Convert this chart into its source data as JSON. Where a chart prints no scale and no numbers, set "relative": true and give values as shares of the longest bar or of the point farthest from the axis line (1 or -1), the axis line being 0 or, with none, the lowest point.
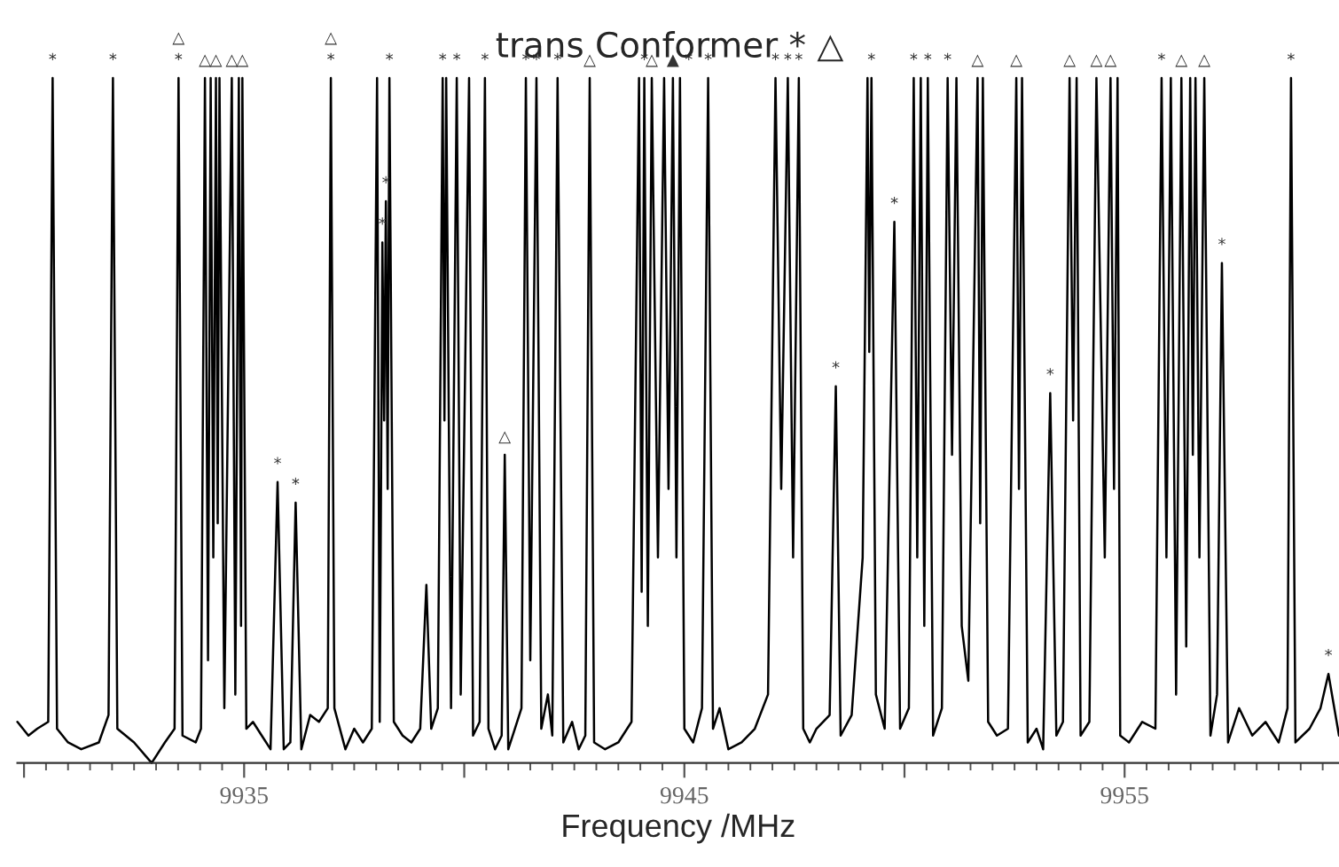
{
  "chart_data": {
    "type": "line",
    "title": "trans Conformer * △",
    "xlabel": "Frequency /MHz",
    "relative": true,
    "xlim": [
      9929.85,
      9959.87
    ],
    "xticks": [
      {
        "value": 9930,
        "label": null
      },
      9935,
      {
        "value": 9940,
        "label": null
      },
      9945,
      {
        "value": 9950,
        "label": null
      },
      9955
    ],
    "tick_labels": "x",
    "grid": false,
    "legend": false,
    "series": [
      {
        "color": "#000000",
        "x": [
          9929.85,
          9930.1,
          9930.3,
          9930.55,
          9930.65,
          9930.75,
          9931.0,
          9931.3,
          9931.7,
          9931.92,
          9932.02,
          9932.12,
          9932.5,
          9932.9,
          9933.2,
          9933.42,
          9933.51,
          9933.6,
          9933.9,
          9934.02,
          9934.11,
          9934.18,
          9934.24,
          9934.3,
          9934.36,
          9934.4,
          9934.44,
          9934.55,
          9934.72,
          9934.8,
          9934.88,
          9934.93,
          9934.96,
          9935.05,
          9935.2,
          9935.4,
          9935.6,
          9935.76,
          9935.9,
          9936.05,
          9936.17,
          9936.3,
          9936.5,
          9936.7,
          9936.9,
          9936.97,
          9937.05,
          9937.3,
          9937.5,
          9937.7,
          9937.9,
          9938.02,
          9938.08,
          9938.14,
          9938.18,
          9938.22,
          9938.26,
          9938.3,
          9938.4,
          9938.6,
          9938.8,
          9939.0,
          9939.14,
          9939.25,
          9939.4,
          9939.51,
          9939.55,
          9939.59,
          9939.7,
          9939.83,
          9939.92,
          9940.11,
          9940.2,
          9940.35,
          9940.47,
          9940.55,
          9940.7,
          9940.85,
          9940.92,
          9941.0,
          9941.15,
          9941.3,
          9941.4,
          9941.5,
          9941.64,
          9941.75,
          9941.9,
          9942.0,
          9942.12,
          9942.25,
          9942.45,
          9942.6,
          9942.75,
          9942.85,
          9942.95,
          9943.2,
          9943.5,
          9943.8,
          9943.97,
          9944.03,
          9944.09,
          9944.17,
          9944.26,
          9944.4,
          9944.54,
          9944.64,
          9944.74,
          9944.82,
          9944.9,
          9945.0,
          9945.2,
          9945.4,
          9945.54,
          9945.65,
          9945.8,
          9946.0,
          9946.3,
          9946.6,
          9946.9,
          9947.07,
          9947.2,
          9947.35,
          9947.47,
          9947.6,
          9947.7,
          9947.85,
          9948.0,
          9948.3,
          9948.44,
          9948.55,
          9948.8,
          9949.05,
          9949.16,
          9949.2,
          9949.25,
          9949.35,
          9949.55,
          9949.77,
          9949.9,
          9950.1,
          9950.21,
          9950.29,
          9950.37,
          9950.45,
          9950.53,
          9950.65,
          9950.85,
          9950.98,
          9951.08,
          9951.18,
          9951.3,
          9951.45,
          9951.66,
          9951.72,
          9951.78,
          9951.9,
          9952.1,
          9952.35,
          9952.54,
          9952.6,
          9952.67,
          9952.8,
          9953.0,
          9953.15,
          9953.31,
          9953.45,
          9953.6,
          9953.75,
          9953.83,
          9953.91,
          9954.0,
          9954.2,
          9954.36,
          9954.55,
          9954.68,
          9954.76,
          9954.84,
          9954.9,
          9955.1,
          9955.4,
          9955.7,
          9955.84,
          9955.95,
          9956.05,
          9956.17,
          9956.29,
          9956.4,
          9956.49,
          9956.55,
          9956.61,
          9956.7,
          9956.81,
          9956.95,
          9957.1,
          9957.21,
          9957.35,
          9957.6,
          9957.9,
          9958.2,
          9958.5,
          9958.7,
          9958.78,
          9958.88,
          9959.2,
          9959.45,
          9959.63,
          9959.87
        ],
        "values": [
          0.06,
          0.04,
          0.05,
          0.06,
          1,
          0.05,
          0.03,
          0.02,
          0.03,
          0.07,
          1,
          0.05,
          0.03,
          0,
          0.03,
          0.05,
          1,
          0.04,
          0.03,
          0.05,
          1,
          0.15,
          1,
          0.3,
          1,
          0.35,
          1,
          0.08,
          1,
          0.1,
          1,
          0.2,
          1,
          0.05,
          0.06,
          0.04,
          0.02,
          0.41,
          0.02,
          0.03,
          0.38,
          0.02,
          0.07,
          0.06,
          0.08,
          1,
          0.08,
          0.02,
          0.05,
          0.03,
          0.05,
          1,
          0.06,
          0.76,
          0.5,
          0.82,
          0.4,
          1,
          0.06,
          0.04,
          0.03,
          0.05,
          0.26,
          0.05,
          0.08,
          1,
          0.5,
          1,
          0.08,
          1,
          0.1,
          1,
          0.04,
          0.06,
          1,
          0.05,
          0.02,
          0.04,
          0.45,
          0.02,
          0.05,
          0.08,
          1,
          0.15,
          1,
          0.05,
          0.1,
          0.04,
          1,
          0.03,
          0.06,
          0.02,
          0.04,
          1,
          0.03,
          0.02,
          0.03,
          0.06,
          1,
          0.25,
          1,
          0.2,
          1,
          0.3,
          1,
          0.4,
          1,
          0.3,
          1,
          0.05,
          0.03,
          0.08,
          1,
          0.05,
          0.08,
          0.02,
          0.03,
          0.05,
          0.1,
          1,
          0.4,
          1,
          0.3,
          1,
          0.05,
          0.03,
          0.05,
          0.07,
          0.55,
          0.04,
          0.07,
          0.3,
          1,
          0.6,
          1,
          0.1,
          0.05,
          0.79,
          0.05,
          0.08,
          1,
          0.3,
          1,
          0.2,
          1,
          0.04,
          0.08,
          1,
          0.45,
          1,
          0.2,
          0.12,
          1,
          0.35,
          1,
          0.06,
          0.04,
          0.05,
          1,
          0.4,
          1,
          0.03,
          0.05,
          0.02,
          0.54,
          0.04,
          0.06,
          1,
          0.5,
          1,
          0.04,
          0.06,
          1,
          0.3,
          1,
          0.4,
          1,
          0.04,
          0.03,
          0.06,
          0.05,
          1,
          0.3,
          1,
          0.1,
          1,
          0.17,
          1,
          0.45,
          1,
          0.3,
          1,
          0.04,
          0.1,
          0.73,
          0.03,
          0.08,
          0.04,
          0.06,
          0.03,
          0.08,
          1,
          0.03,
          0.05,
          0.08,
          0.13,
          0.04
        ]
      }
    ],
    "annotations": [
      {
        "text": "*",
        "x": 9930.65,
        "y": 1
      },
      {
        "text": "*",
        "x": 9932.02,
        "y": 1
      },
      {
        "text": "*",
        "x": 9933.51,
        "y": 1
      },
      {
        "text": "△",
        "x": 9933.51,
        "y": 1
      },
      {
        "text": "△",
        "x": 9934.11,
        "y": 1
      },
      {
        "text": "△",
        "x": 9934.36,
        "y": 1
      },
      {
        "text": "△",
        "x": 9934.72,
        "y": 1
      },
      {
        "text": "△",
        "x": 9934.96,
        "y": 1
      },
      {
        "text": "*",
        "x": 9935.76,
        "y": 0.41
      },
      {
        "text": "*",
        "x": 9936.17,
        "y": 0.38
      },
      {
        "text": "*",
        "x": 9936.97,
        "y": 1
      },
      {
        "text": "△",
        "x": 9936.97,
        "y": 1
      },
      {
        "text": "*",
        "x": 9938.14,
        "y": 0.76
      },
      {
        "text": "*",
        "x": 9938.22,
        "y": 0.82
      },
      {
        "text": "*",
        "x": 9938.3,
        "y": 1
      },
      {
        "text": "*",
        "x": 9939.51,
        "y": 1
      },
      {
        "text": "*",
        "x": 9939.83,
        "y": 1
      },
      {
        "text": "*",
        "x": 9940.47,
        "y": 1
      },
      {
        "text": "△",
        "x": 9940.92,
        "y": 0.45
      },
      {
        "text": "*",
        "x": 9941.4,
        "y": 1
      },
      {
        "text": "*",
        "x": 9941.64,
        "y": 1
      },
      {
        "text": "*",
        "x": 9942.12,
        "y": 1
      },
      {
        "text": "△",
        "x": 9942.85,
        "y": 1
      },
      {
        "text": "*",
        "x": 9944.09,
        "y": 1
      },
      {
        "text": "△",
        "x": 9944.26,
        "y": 1
      },
      {
        "text": "▲",
        "x": 9944.74,
        "y": 1
      },
      {
        "text": "*",
        "x": 9945.1,
        "y": 1
      },
      {
        "text": "*",
        "x": 9945.54,
        "y": 1
      },
      {
        "text": "*",
        "x": 9947.07,
        "y": 1
      },
      {
        "text": "*",
        "x": 9947.35,
        "y": 1
      },
      {
        "text": "*",
        "x": 9947.6,
        "y": 1
      },
      {
        "text": "*",
        "x": 9948.44,
        "y": 0.55
      },
      {
        "text": "*",
        "x": 9949.25,
        "y": 1
      },
      {
        "text": "*",
        "x": 9949.77,
        "y": 0.79
      },
      {
        "text": "*",
        "x": 9950.21,
        "y": 1
      },
      {
        "text": "*",
        "x": 9950.53,
        "y": 1
      },
      {
        "text": "*",
        "x": 9950.98,
        "y": 1
      },
      {
        "text": "△",
        "x": 9951.66,
        "y": 1
      },
      {
        "text": "△",
        "x": 9952.54,
        "y": 1
      },
      {
        "text": "*",
        "x": 9953.31,
        "y": 0.54
      },
      {
        "text": "△",
        "x": 9953.75,
        "y": 1
      },
      {
        "text": "△",
        "x": 9954.36,
        "y": 1
      },
      {
        "text": "△",
        "x": 9954.68,
        "y": 1
      },
      {
        "text": "*",
        "x": 9955.84,
        "y": 1
      },
      {
        "text": "△",
        "x": 9956.29,
        "y": 1
      },
      {
        "text": "△",
        "x": 9956.81,
        "y": 1
      },
      {
        "text": "*",
        "x": 9957.21,
        "y": 0.73
      },
      {
        "text": "*",
        "x": 9958.78,
        "y": 1
      },
      {
        "text": "*",
        "x": 9959.63,
        "y": 0.13
      }
    ]
  }
}
